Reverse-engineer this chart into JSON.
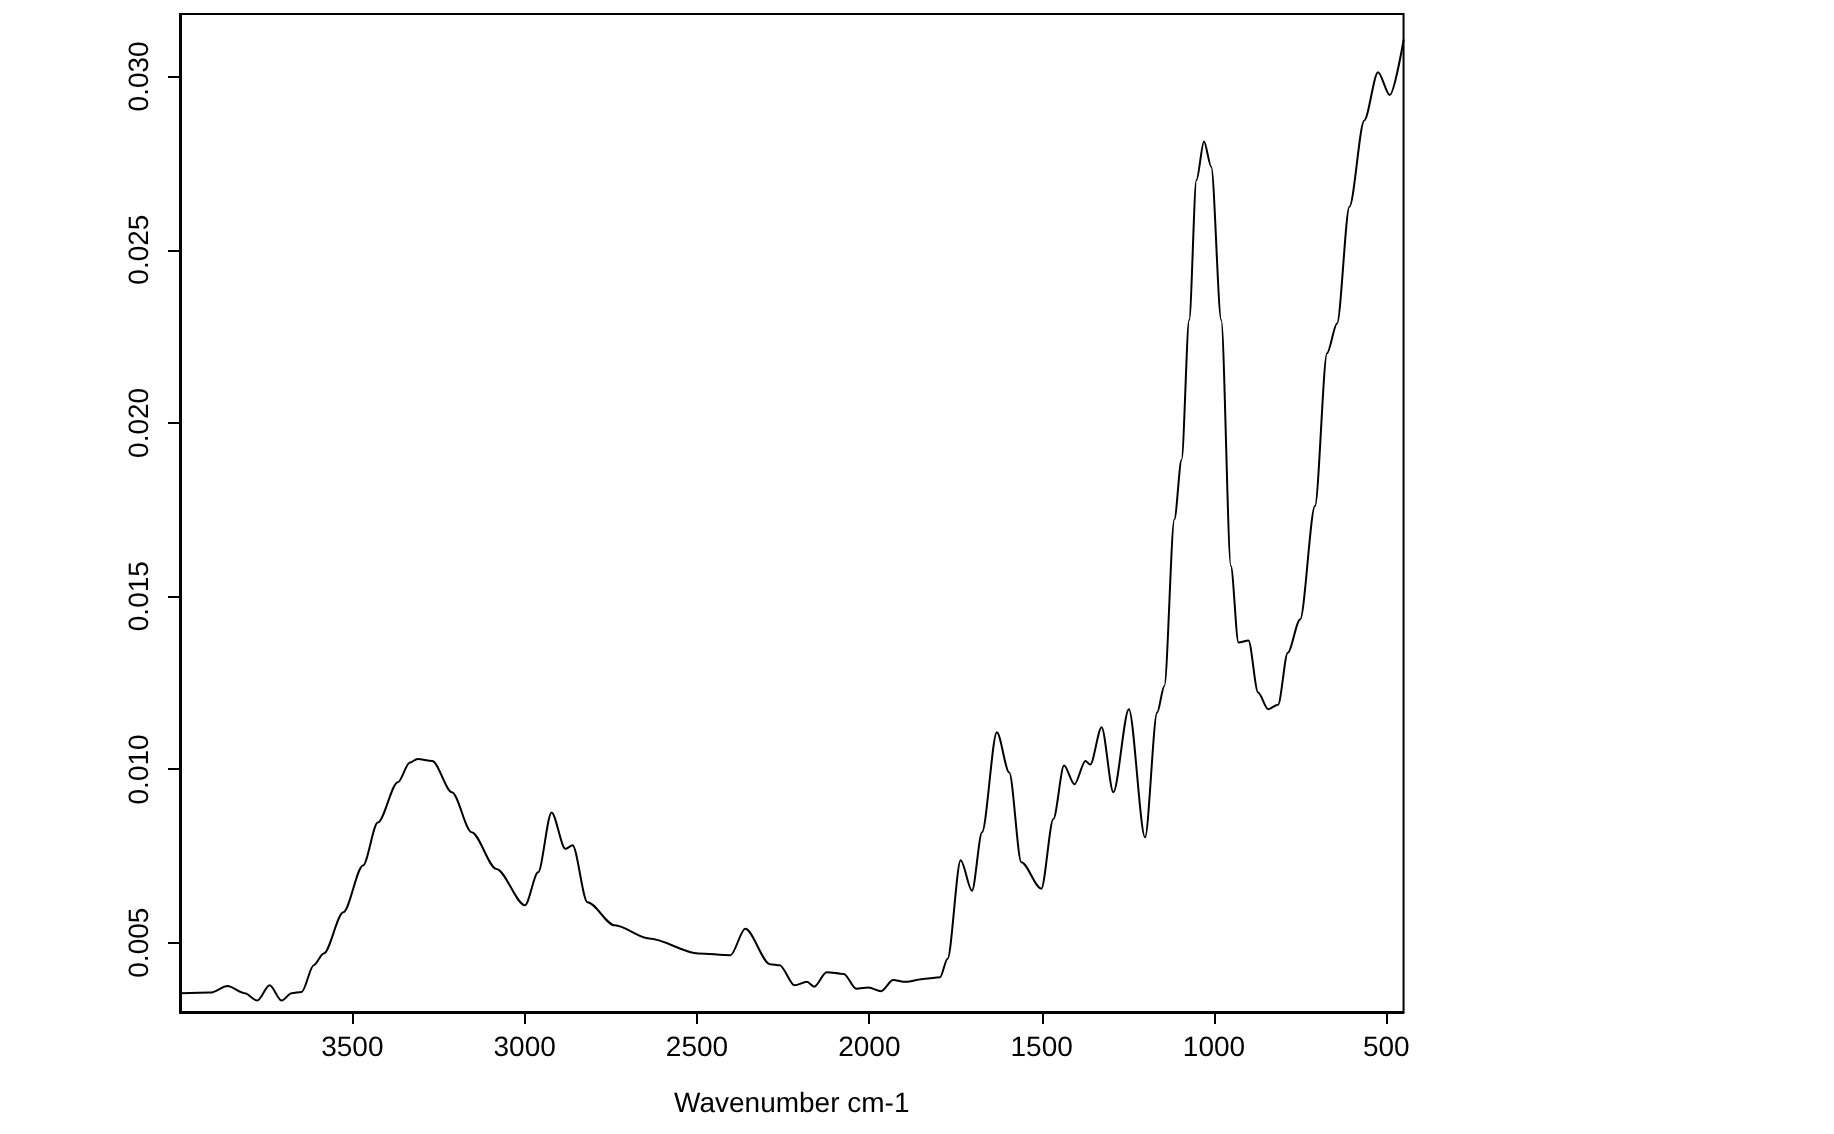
{
  "chart_data": {
    "type": "line",
    "xlabel": "Wavenumber cm-1",
    "xlim": [
      4000,
      450
    ],
    "xticks": [
      3500,
      3000,
      2500,
      2000,
      1500,
      1000,
      500
    ],
    "ylim": [
      0.003,
      0.0318
    ],
    "yticks": [
      0.005,
      {
        "value": 0.01,
        "label": "0.010"
      },
      0.015,
      {
        "value": 0.02,
        "label": "0.020"
      },
      0.025,
      {
        "value": 0.03,
        "label": "0.030"
      }
    ],
    "marker": "none",
    "line_style": "solid",
    "series": [
      {
        "color": "#000000",
        "x": [
          3998,
          3912,
          3862,
          3812,
          3776,
          3740,
          3705,
          3676,
          3647,
          3612,
          3583,
          3526,
          3469,
          3426,
          3368,
          3333,
          3311,
          3268,
          3211,
          3154,
          3082,
          2999,
          2961,
          2922,
          2882,
          2861,
          2818,
          2739,
          2639,
          2496,
          2403,
          2360,
          2288,
          2260,
          2217,
          2181,
          2160,
          2124,
          2074,
          2038,
          2002,
          1966,
          1931,
          1895,
          1838,
          1795,
          1773,
          1735,
          1702,
          1673,
          1630,
          1594,
          1559,
          1501,
          1466,
          1435,
          1405,
          1373,
          1359,
          1326,
          1292,
          1247,
          1200,
          1165,
          1144,
          1115,
          1094,
          1072,
          1051,
          1029,
          1008,
          979,
          951,
          929,
          900,
          872,
          843,
          814,
          786,
          750,
          707,
          672,
          643,
          607,
          564,
          524,
          490,
          450
        ],
        "values": [
          0.00354,
          0.00356,
          0.00375,
          0.00354,
          0.00333,
          0.00377,
          0.00333,
          0.00354,
          0.00358,
          0.00435,
          0.00469,
          0.00588,
          0.00723,
          0.00847,
          0.00963,
          0.0102,
          0.0103,
          0.01024,
          0.00934,
          0.00819,
          0.00713,
          0.00608,
          0.00703,
          0.00876,
          0.00771,
          0.00781,
          0.00617,
          0.0055,
          0.00512,
          0.00469,
          0.00464,
          0.0054,
          0.00438,
          0.00435,
          0.00377,
          0.00387,
          0.00373,
          0.00415,
          0.0041,
          0.00367,
          0.00371,
          0.0036,
          0.00392,
          0.00387,
          0.00396,
          0.004,
          0.00454,
          0.00738,
          0.0065,
          0.00819,
          0.01107,
          0.00991,
          0.00732,
          0.00656,
          0.00857,
          0.01011,
          0.00957,
          0.01024,
          0.01014,
          0.01122,
          0.00934,
          0.01174,
          0.00804,
          0.01164,
          0.01241,
          0.01721,
          0.01894,
          0.02297,
          0.027,
          0.02812,
          0.02739,
          0.02297,
          0.01587,
          0.01366,
          0.01372,
          0.01222,
          0.01174,
          0.01187,
          0.01337,
          0.01433,
          0.0176,
          0.02201,
          0.02287,
          0.02624,
          0.02873,
          0.03012,
          0.02946,
          0.03104
        ]
      }
    ]
  }
}
